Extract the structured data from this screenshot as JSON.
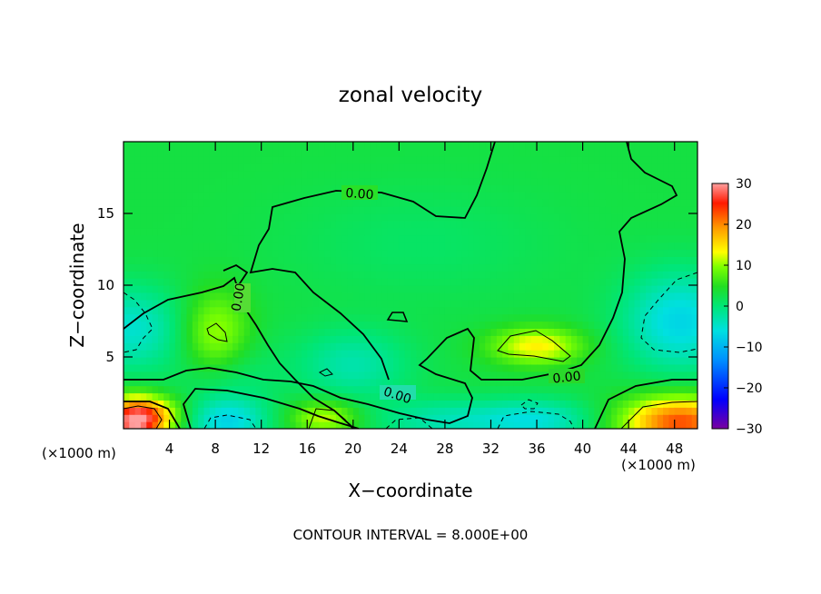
{
  "chart_data": {
    "type": "heatmap",
    "title": "zonal velocity",
    "xlabel": "X−coordinate",
    "ylabel": "Z−coordinate",
    "x_unit_left": "(×1000 m)",
    "x_unit_right": "(×1000 m)",
    "footer": "CONTOUR INTERVAL = 8.000E+00",
    "xlim": [
      0,
      50
    ],
    "ylim": [
      0,
      20
    ],
    "xticks": [
      4,
      8,
      12,
      16,
      20,
      24,
      28,
      32,
      36,
      40,
      44,
      48
    ],
    "yticks": [
      5,
      10,
      15
    ],
    "colorbar": {
      "range": [
        -30,
        30
      ],
      "ticks": [
        30,
        20,
        10,
        0,
        -10,
        -20,
        -30
      ],
      "tick_labels": [
        "30",
        "20",
        "10",
        "0",
        "−10",
        "−20",
        "−30"
      ],
      "colormap": [
        "#7a00a0",
        "#0000ff",
        "#0090ff",
        "#00e0e0",
        "#00e676",
        "#22dd22",
        "#7dff00",
        "#ffff00",
        "#ff9900",
        "#ff1a00",
        "#ff9f9f"
      ]
    },
    "background_value": 3,
    "anomalies": [
      {
        "x": 0.5,
        "z": 7.0,
        "value": -8,
        "rx": 5.0,
        "rz": 3.0
      },
      {
        "x": 48.5,
        "z": 7.5,
        "value": -10,
        "rx": 5.0,
        "rz": 3.5
      },
      {
        "x": 9.0,
        "z": 3.5,
        "value": -4,
        "rx": 4.0,
        "rz": 3.0
      },
      {
        "x": 20.0,
        "z": 4.5,
        "value": -6,
        "rx": 5.0,
        "rz": 2.5
      },
      {
        "x": 28.0,
        "z": 0.6,
        "value": -6,
        "rx": 6.0,
        "rz": 1.5
      },
      {
        "x": 36.0,
        "z": 0.6,
        "value": -8,
        "rx": 5.0,
        "rz": 1.5
      },
      {
        "x": 9.0,
        "z": 0.5,
        "value": -9,
        "rx": 3.5,
        "rz": 1.5
      },
      {
        "x": 0.8,
        "z": 0.4,
        "value": 22,
        "rx": 2.5,
        "rz": 1.7
      },
      {
        "x": 48.5,
        "z": 0.5,
        "value": 20,
        "rx": 5.0,
        "rz": 1.8
      },
      {
        "x": 8.0,
        "z": 6.5,
        "value": 9,
        "rx": 3.0,
        "rz": 3.0
      },
      {
        "x": 36.0,
        "z": 5.8,
        "value": 11,
        "rx": 4.0,
        "rz": 1.3
      },
      {
        "x": 17.5,
        "z": 0.8,
        "value": 9,
        "rx": 3.0,
        "rz": 1.2
      },
      {
        "x": 2.5,
        "z": 1.0,
        "value": 10,
        "rx": 3.0,
        "rz": 1.3
      },
      {
        "x": 26.0,
        "z": 13.0,
        "value": -2,
        "rx": 12.0,
        "rz": 4.0
      }
    ],
    "contours": [
      {
        "level": "0.00",
        "label": "0.00",
        "style": "solid"
      },
      {
        "level": "0.00",
        "label": "0.00",
        "style": "solid"
      },
      {
        "level": "0.00",
        "label": "0.00",
        "style": "solid"
      },
      {
        "level": "0.00",
        "label": "0.00",
        "style": "solid"
      },
      {
        "level": "8.00",
        "label": "",
        "style": "solid-thin"
      },
      {
        "level": "-8.00",
        "label": "",
        "style": "dashed"
      }
    ]
  }
}
